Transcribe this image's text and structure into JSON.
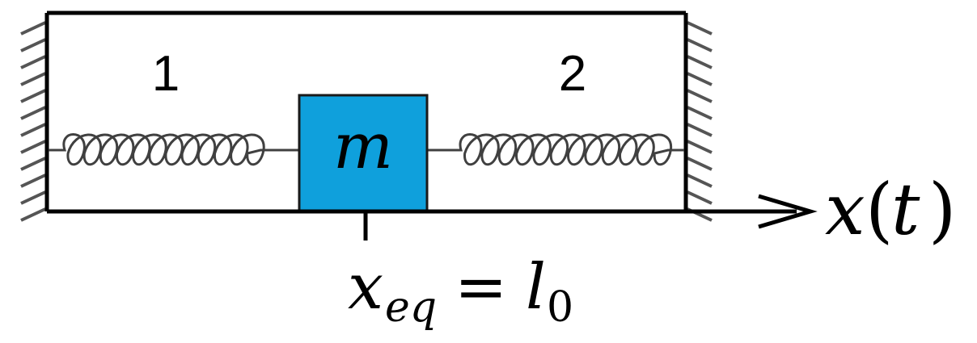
{
  "labels": {
    "spring_left": "1",
    "spring_right": "2",
    "mass": "m",
    "axis_var": "x",
    "axis_open": "(",
    "axis_arg": "t",
    "axis_close": ")",
    "eq_var": "x",
    "eq_sub": "eq",
    "eq_sign": "=",
    "eq_rhs": "l",
    "eq_rhs_sub": "0"
  },
  "colors": {
    "mass_fill": "#0fa0dc",
    "line": "#000000",
    "spring": "#404040",
    "wall_hatch": "#555555"
  }
}
